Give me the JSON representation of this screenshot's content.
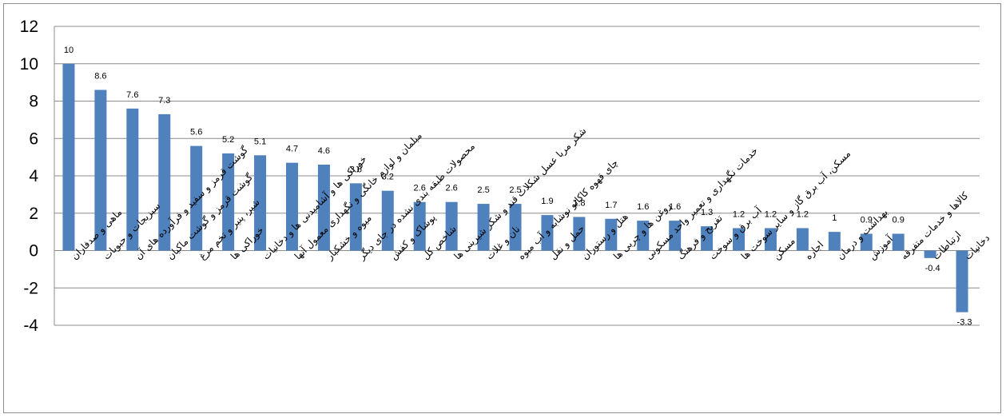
{
  "chart_data": {
    "type": "bar",
    "title": "",
    "xlabel": "",
    "ylabel": "",
    "ylim": [
      -4,
      12
    ],
    "yticks": [
      -4,
      -2,
      0,
      2,
      4,
      6,
      8,
      10,
      12
    ],
    "grid": true,
    "legend": "none",
    "bar_color": "#4f81bd",
    "categories": [
      "ماهی و صدفاران",
      "سبزیجات و حبوبات",
      "گوشت قرمز و سفید و فرآورده های آن",
      "گوشت قرمز و گوشت ماکیان",
      "شیر، پنیر و تخم مرغ",
      "خوراکی ها",
      "خوراکی ها و آشامیدنی ها و دخانیات",
      "مبلمان و لوازم خانگی و نگهداری معمول آنها",
      "میوه و خشکبار",
      "محصولات طبقه بندی نشده در جای دیگر",
      "پوشاک و کفش",
      "شاخص کل",
      "شکر مربا عسل شکلات قند و شکر شیرینی ها",
      "نان و غلات",
      "چای قهوه کاکائو نوشابه و آب میوه",
      "حمل و نقل",
      "هتل و رستوران",
      "روغن ها و چربی ها",
      "خدمات نگهداری و تعمیر واحد مسکونی",
      "تفریح و فرهنگ",
      "آب برق و سوخت",
      "مسکن، آب برق گاز و سایر سوخت ها",
      "مسکن",
      "اجاره",
      "بهداشت و درمان",
      "آموزش",
      "کالاها و خدمات متفرقه",
      "ارتباطات",
      "دخانیات"
    ],
    "values": [
      10,
      8.6,
      7.6,
      7.3,
      5.6,
      5.2,
      5.1,
      4.7,
      4.6,
      3.6,
      3.2,
      2.6,
      2.6,
      2.5,
      2.5,
      1.9,
      1.8,
      1.7,
      1.6,
      1.6,
      1.3,
      1.2,
      1.2,
      1.2,
      1,
      0.9,
      0.9,
      -0.4,
      -3.3
    ],
    "data_labels": [
      "10",
      "8.6",
      "7.6",
      "7.3",
      "5.6",
      "5.2",
      "5.1",
      "4.7",
      "4.6",
      "3.6",
      "3.2",
      "2.6",
      "2.6",
      "2.5",
      "2.5",
      "1.9",
      "1.8",
      "1.7",
      "1.6",
      "1.6",
      "1.3",
      "1.2",
      "1.2",
      "1.2",
      "1",
      "0.9",
      "0.9",
      "-0.4",
      "-3.3"
    ]
  }
}
